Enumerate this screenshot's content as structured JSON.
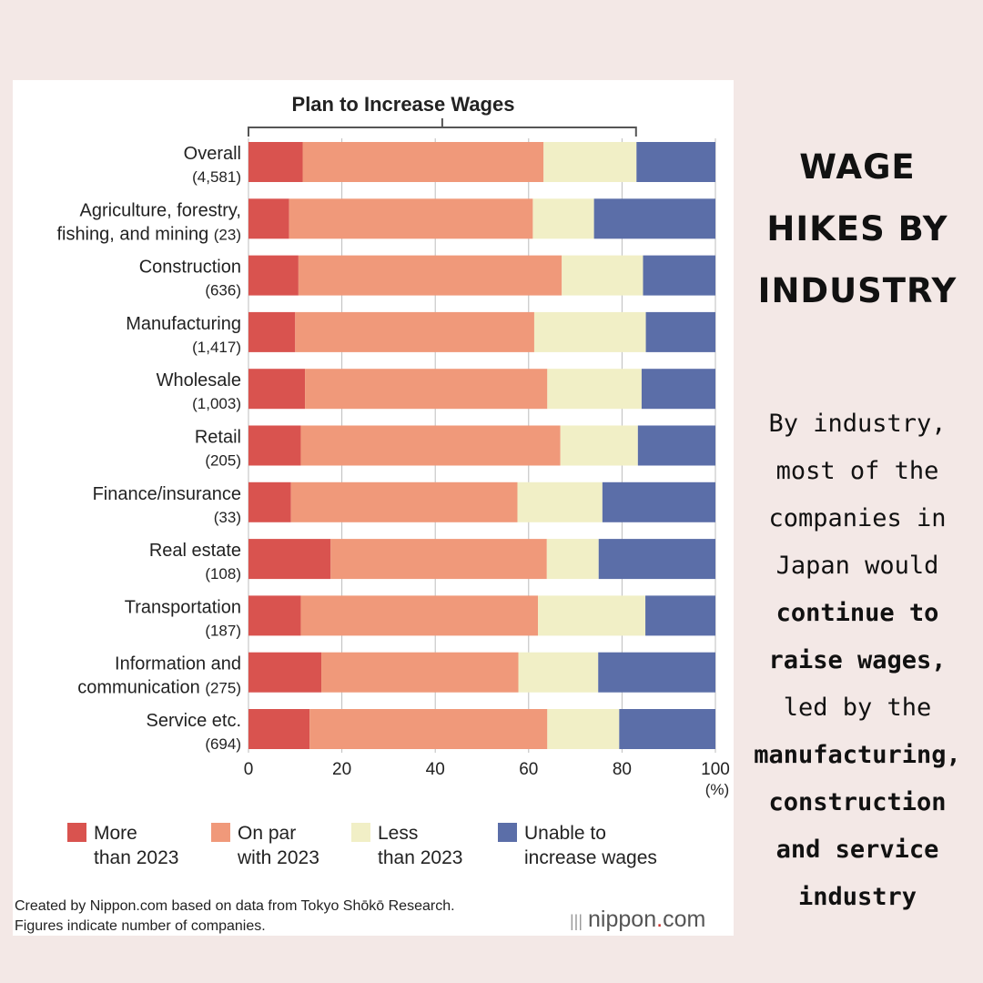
{
  "chart_data": {
    "type": "bar",
    "orientation": "horizontal",
    "stacked": true,
    "title": "Plan to Increase Wages",
    "xlabel": "",
    "unit": "(%)",
    "xlim": [
      0,
      100
    ],
    "ticks": [
      "0",
      "20",
      "40",
      "60",
      "80",
      "100"
    ],
    "grid": true,
    "legend_position": "bottom",
    "categories": [
      {
        "name": "Overall",
        "count": "(4,581)"
      },
      {
        "name": "Agriculture, forestry,\nfishing, and mining",
        "count": "(23)"
      },
      {
        "name": "Construction",
        "count": "(636)"
      },
      {
        "name": "Manufacturing",
        "count": "(1,417)"
      },
      {
        "name": "Wholesale",
        "count": "(1,003)"
      },
      {
        "name": "Retail",
        "count": "(205)"
      },
      {
        "name": "Finance/insurance",
        "count": "(33)"
      },
      {
        "name": "Real estate",
        "count": "(108)"
      },
      {
        "name": "Transportation",
        "count": "(187)"
      },
      {
        "name": "Information and\ncommunication",
        "count": "(275)"
      },
      {
        "name": "Service etc.",
        "count": "(694)"
      }
    ],
    "series": [
      {
        "name": "More\nthan 2023",
        "color": "#d9534f",
        "values": [
          11.6,
          8.7,
          10.7,
          10.0,
          12.1,
          11.2,
          9.1,
          17.6,
          11.2,
          15.6,
          13.1
        ]
      },
      {
        "name": "On par\nwith 2023",
        "color": "#f0997a",
        "values": [
          51.6,
          52.2,
          56.4,
          51.2,
          51.9,
          55.6,
          48.5,
          46.3,
          50.8,
          42.2,
          50.9
        ]
      },
      {
        "name": "Less\nthan 2023",
        "color": "#f1efc6",
        "values": [
          19.9,
          13.1,
          17.4,
          23.9,
          20.2,
          16.6,
          18.2,
          11.1,
          23.0,
          17.1,
          15.4
        ]
      },
      {
        "name": "Unable to\nincrease wages",
        "color": "#5b6ea8",
        "values": [
          16.9,
          26.0,
          15.5,
          14.9,
          15.8,
          16.6,
          24.2,
          25.0,
          15.0,
          25.1,
          20.6
        ]
      }
    ],
    "bracket_span": [
      0,
      83
    ]
  },
  "side": {
    "heading": [
      "WAGE",
      "HIKES BY",
      "INDUSTRY"
    ],
    "lines": [
      {
        "text": "By industry,",
        "bold": false
      },
      {
        "text": "most of the",
        "bold": false
      },
      {
        "text": "companies in",
        "bold": false
      },
      {
        "text": "Japan would",
        "bold": false
      },
      {
        "text": "continue to",
        "bold": true
      },
      {
        "text": "raise wages,",
        "bold": true
      },
      {
        "text": "led by the",
        "bold": false
      },
      {
        "text": "manufacturing,",
        "bold": true
      },
      {
        "text": "construction",
        "bold": true
      },
      {
        "text": "and service",
        "bold": true
      },
      {
        "text": "industry",
        "bold": true
      }
    ]
  },
  "footer": {
    "line1": "Created by Nippon.com based on data from Tokyo Shōkō Research.",
    "line2": "Figures indicate number of companies."
  },
  "brand": {
    "name": "nippon",
    "dot": ".",
    "suffix": "com"
  }
}
